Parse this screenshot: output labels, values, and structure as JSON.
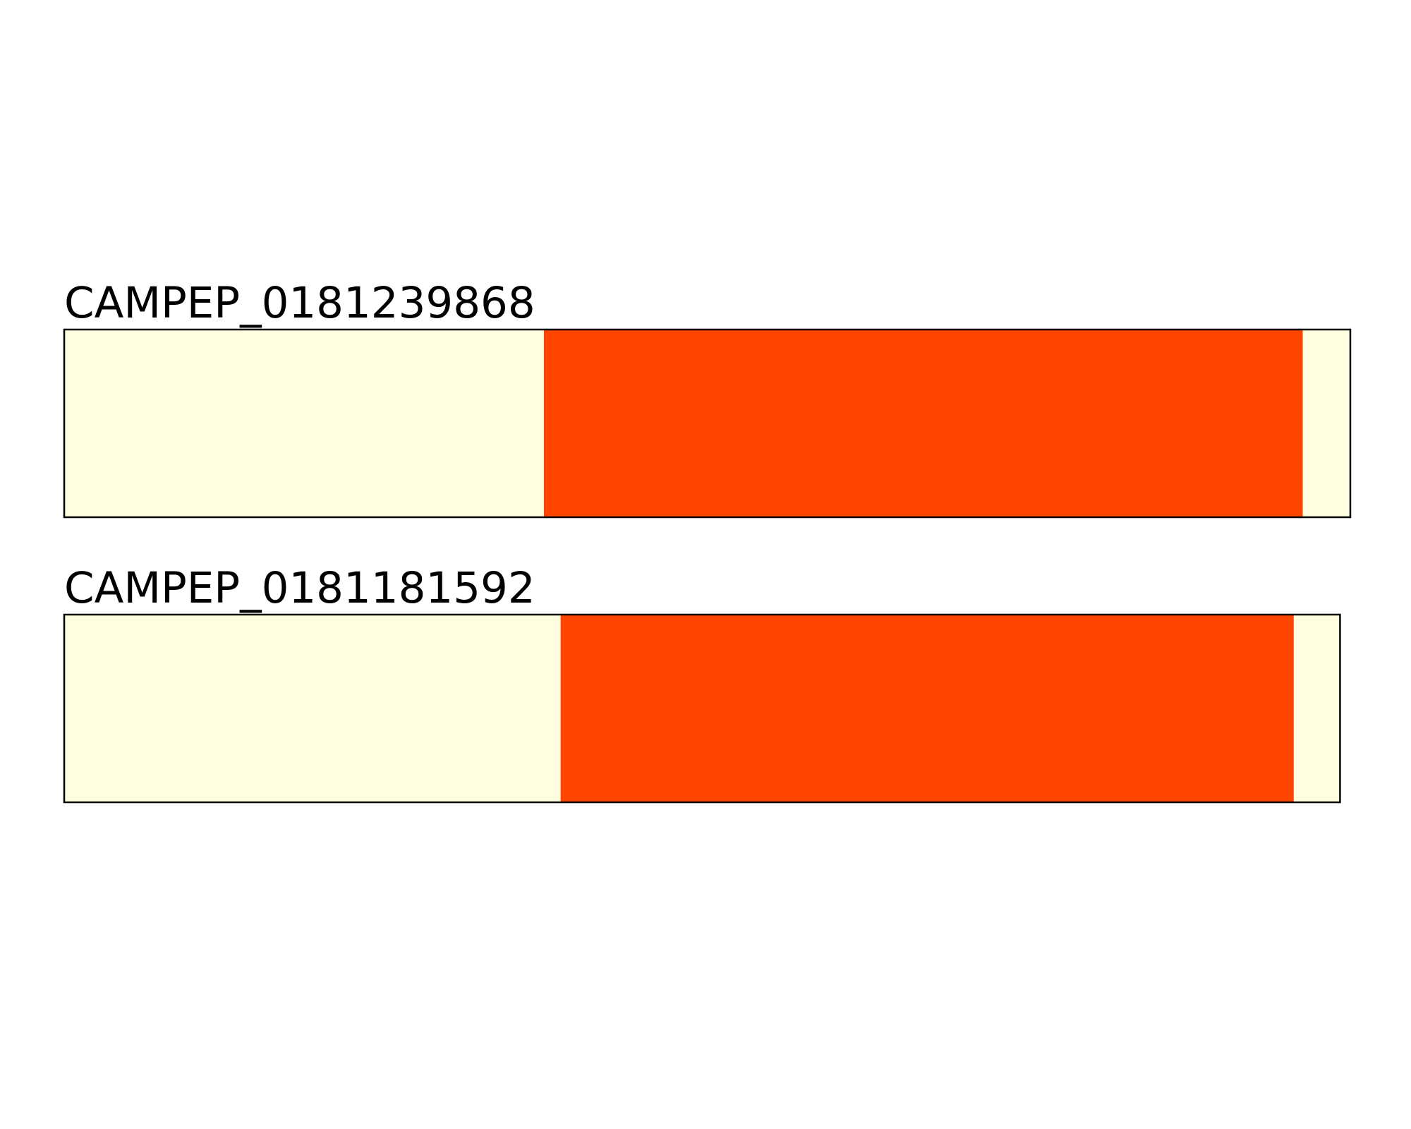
{
  "chart_data": {
    "type": "heatmap",
    "colors": {
      "low": "#ffffe0",
      "high": "#ff4500",
      "border": "#000000"
    },
    "tracks": [
      {
        "title": "CAMPEP_0181239868",
        "length": 100,
        "segments": [
          {
            "start": 0,
            "end": 37.3,
            "value": 0
          },
          {
            "start": 37.3,
            "end": 96.3,
            "value": 1
          },
          {
            "start": 96.3,
            "end": 100,
            "value": 0
          }
        ]
      },
      {
        "title": "CAMPEP_0181181592",
        "length": 99.2,
        "segments": [
          {
            "start": 0,
            "end": 38.6,
            "value": 0
          },
          {
            "start": 38.6,
            "end": 95.6,
            "value": 1
          },
          {
            "start": 95.6,
            "end": 99.2,
            "value": 0
          }
        ]
      }
    ]
  }
}
